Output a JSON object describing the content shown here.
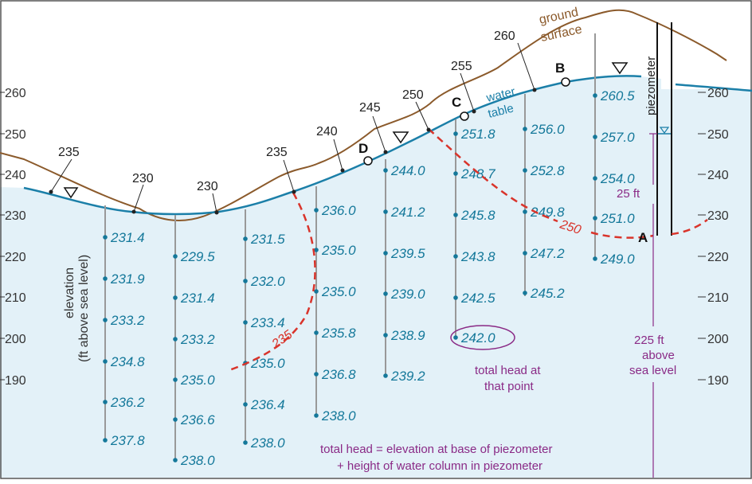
{
  "colors": {
    "ground": "#8b5a2b",
    "water_table": "#1b7fa8",
    "saturated_fill": "#e3f1f8",
    "head_values": "#14789a",
    "contour": "#d9342b",
    "annotation": "#8a2a86"
  },
  "elevation_axis": {
    "label_line1": "elevation",
    "label_line2": "(ft above sea level)",
    "left_ticks": [
      "260",
      "250",
      "240",
      "230",
      "220",
      "210",
      "200",
      "190"
    ],
    "right_ticks": [
      "260",
      "250",
      "240",
      "230",
      "220",
      "210",
      "200",
      "190"
    ]
  },
  "labels": {
    "ground_line1": "ground",
    "ground_line2": "surface",
    "water_line1": "water",
    "water_line2": "table",
    "piezometer": "piezometer",
    "point_a": "A",
    "point_b": "B",
    "point_c": "C",
    "point_d": "D",
    "contour_235": "235",
    "contour_250": "250",
    "note_head_line1": "total head at",
    "note_head_line2": "that point",
    "note_25_ft": "25 ft",
    "note_225_line1": "225 ft",
    "note_225_line2": "above",
    "note_225_line3": "sea level",
    "formula_line1": "total head = elevation at base of piezometer",
    "formula_line2": "+ height of water column in piezometer"
  },
  "water_table_head_labels": [
    "235",
    "230",
    "230",
    "235",
    "240",
    "245",
    "250",
    "255",
    "260"
  ],
  "head_columns": [
    [
      "231.4",
      "231.9",
      "233.2",
      "234.8",
      "236.2",
      "237.8"
    ],
    [
      "229.5",
      "231.4",
      "233.2",
      "235.0",
      "236.6",
      "238.0"
    ],
    [
      "231.5",
      "232.0",
      "233.4",
      "235.0",
      "236.4",
      "238.0"
    ],
    [
      "236.0",
      "235.0",
      "235.0",
      "235.8",
      "236.8",
      "238.0"
    ],
    [
      "244.0",
      "241.2",
      "239.5",
      "239.0",
      "238.9",
      "239.2"
    ],
    [
      "251.8",
      "248.7",
      "245.8",
      "243.8",
      "242.5",
      "242.0"
    ],
    [
      "256.0",
      "252.8",
      "249.8",
      "247.2",
      "245.2"
    ],
    [
      "260.5",
      "257.0",
      "254.0",
      "251.0",
      "249.0"
    ]
  ]
}
